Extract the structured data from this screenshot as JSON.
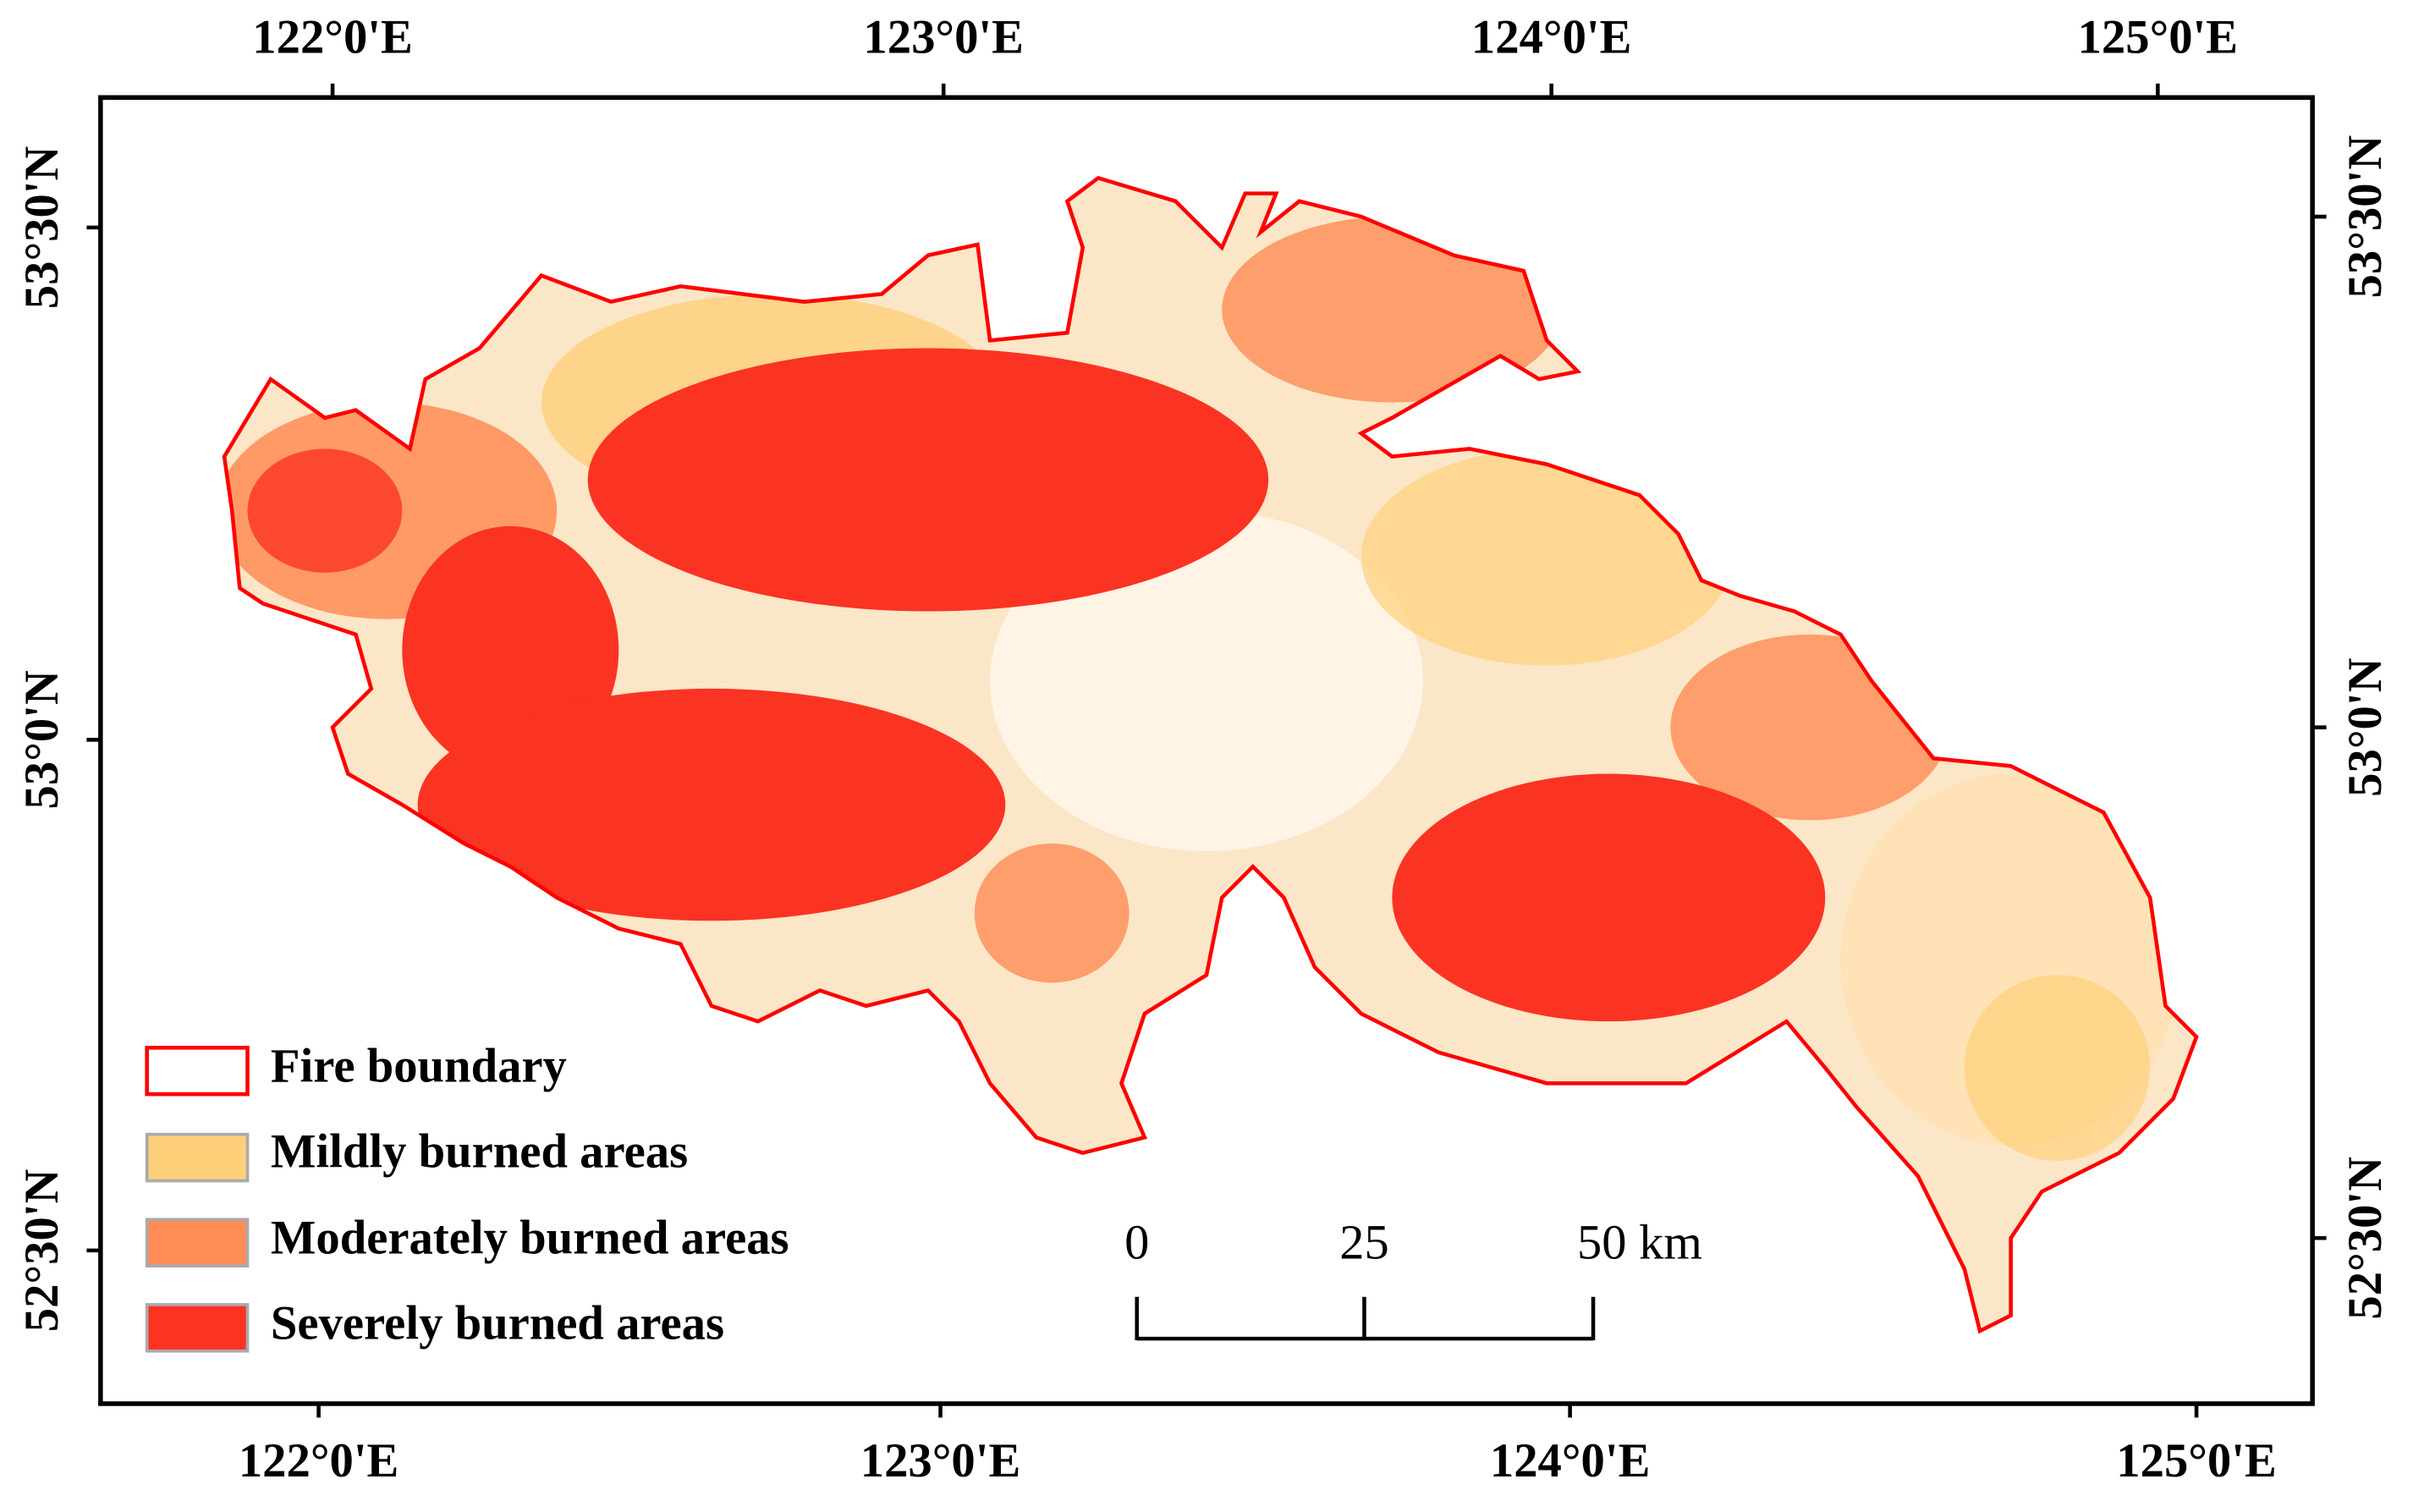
{
  "map": {
    "top_labels": [
      "122°0'E",
      "123°0'E",
      "124°0'E",
      "125°0'E"
    ],
    "bottom_labels": [
      "122°0'E",
      "123°0'E",
      "124°0'E",
      "125°0'E"
    ],
    "left_labels": [
      "53°30'N",
      "53°0'N",
      "52°30'N"
    ],
    "right_labels": [
      "53°30'N",
      "53°0'N",
      "52°30'N"
    ],
    "legend": [
      "Fire boundary",
      "Mildly burned areas",
      "Moderately burned areas",
      "Severely burned areas"
    ],
    "scale_bar": [
      "0",
      "25",
      "50 km"
    ]
  }
}
